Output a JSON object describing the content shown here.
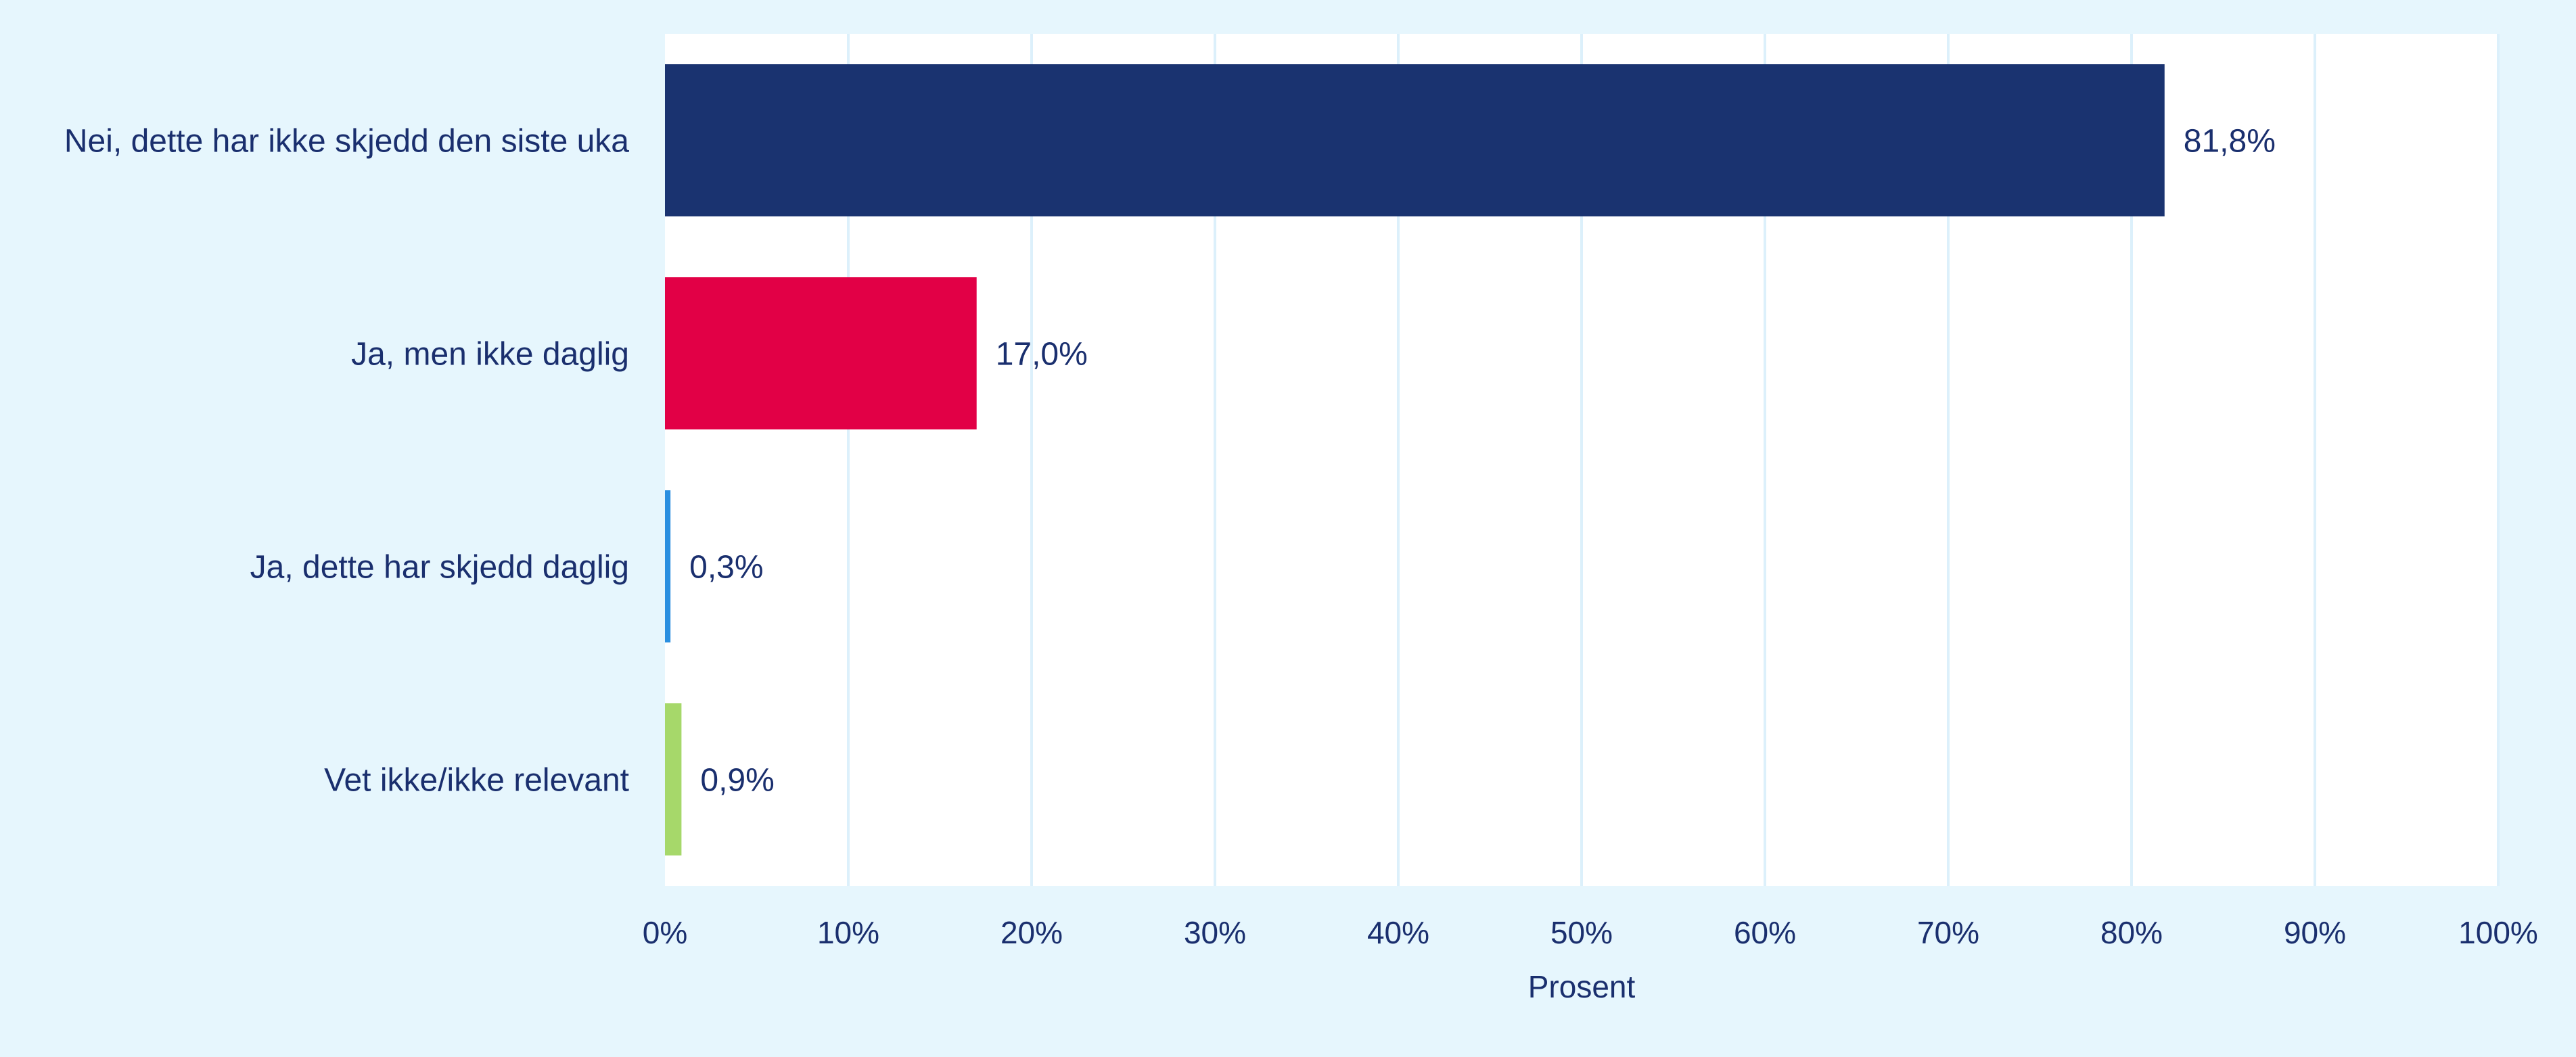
{
  "chart_data": {
    "type": "bar",
    "orientation": "horizontal",
    "categories": [
      "Nei, dette har ikke skjedd den siste uka",
      "Ja, men ikke daglig",
      "Ja, dette har skjedd daglig",
      "Vet ikke/ikke relevant"
    ],
    "values": [
      81.8,
      17.0,
      0.3,
      0.9
    ],
    "value_labels": [
      "81,8%",
      "17,0%",
      "0,3%",
      "0,9%"
    ],
    "colors": [
      "#1a3370",
      "#e20046",
      "#2a8fe0",
      "#a6d86a"
    ],
    "xlabel": "Prosent",
    "xlim": [
      0,
      100
    ],
    "xticks": [
      "0%",
      "10%",
      "20%",
      "30%",
      "40%",
      "50%",
      "60%",
      "70%",
      "80%",
      "90%",
      "100%"
    ],
    "grid": true,
    "legend": "none"
  },
  "colors": {
    "background": "#e6f6fd",
    "plot_background": "#ffffff",
    "gridline": "#dcf0fb",
    "text": "#1a2f6e"
  }
}
